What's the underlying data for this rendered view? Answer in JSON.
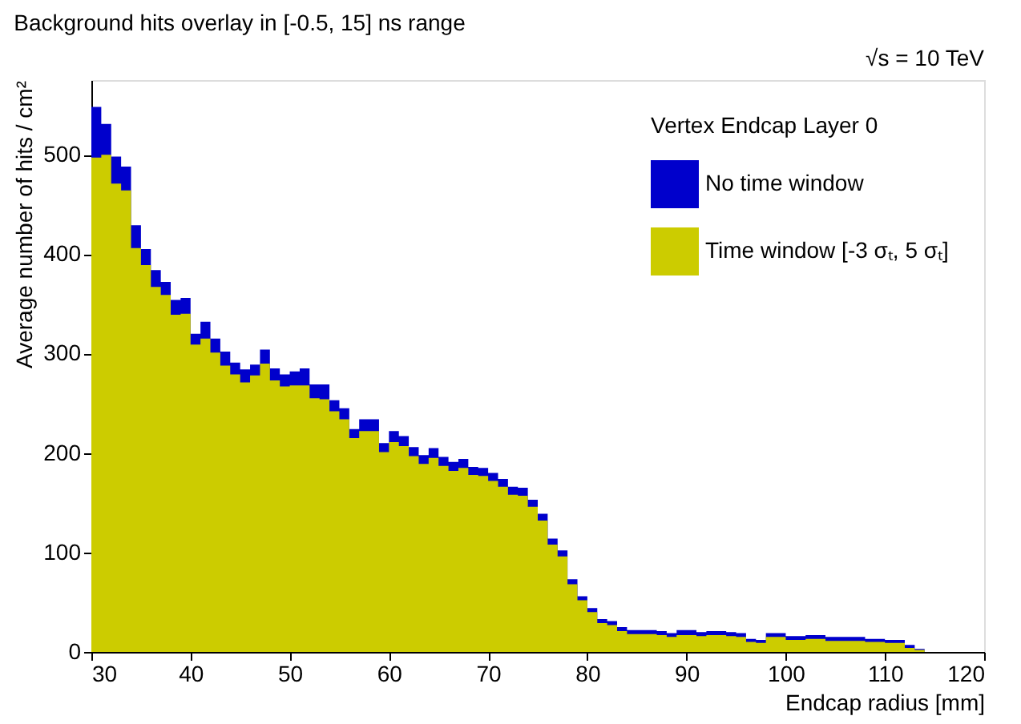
{
  "chart_data": {
    "type": "histogram",
    "title": "Background hits overlay in [-0.5, 15] ns range",
    "annotations": [
      "√s = 10 TeV"
    ],
    "xlabel": "Endcap radius [mm]",
    "ylabel": "Average number of hits / cm²",
    "legend_title": "Vertex Endcap Layer 0",
    "legend": "top right",
    "grid": false,
    "bins": [
      30,
      31,
      32,
      33,
      34,
      35,
      36,
      37,
      38,
      39,
      40,
      41,
      42,
      43,
      44,
      45,
      46,
      47,
      48,
      49,
      50,
      51,
      52,
      53,
      54,
      55,
      56,
      57,
      58,
      59,
      60,
      61,
      62,
      63,
      64,
      65,
      66,
      67,
      68,
      69,
      70,
      71,
      72,
      73,
      74,
      75,
      76,
      77,
      78,
      79,
      80,
      81,
      82,
      83,
      84,
      85,
      86,
      87,
      88,
      89,
      90,
      91,
      92,
      93,
      94,
      95,
      96,
      97,
      98,
      99,
      100,
      101,
      102,
      103,
      104,
      105,
      106,
      107,
      108,
      109,
      110,
      111,
      112,
      113,
      114
    ],
    "series": [
      {
        "name": "No time window",
        "color": "#0000cc",
        "values": [
          548,
          531,
          498,
          488,
          429,
          405,
          384,
          372,
          354,
          356,
          320,
          332,
          315,
          302,
          291,
          284,
          289,
          304,
          285,
          279,
          282,
          285,
          269,
          269,
          253,
          245,
          224,
          234,
          234,
          210,
          222,
          217,
          206,
          198,
          205,
          196,
          191,
          194,
          186,
          185,
          180,
          174,
          166,
          165,
          153,
          139,
          114,
          102,
          73,
          56,
          44,
          33,
          31,
          25,
          22,
          22,
          22,
          21,
          19,
          22,
          22,
          20,
          21,
          21,
          20,
          19,
          13,
          12,
          19,
          19,
          16,
          16,
          17,
          17,
          15,
          15,
          15,
          15,
          13,
          13,
          12,
          12,
          7,
          3
        ]
      },
      {
        "name": "Time window [-3 σₜ, 5 σₜ]",
        "color": "#cccc00",
        "values": [
          497,
          500,
          471,
          464,
          406,
          389,
          367,
          359,
          339,
          340,
          309,
          315,
          301,
          288,
          279,
          271,
          278,
          290,
          273,
          267,
          268,
          268,
          255,
          254,
          242,
          234,
          215,
          222,
          222,
          201,
          211,
          207,
          197,
          189,
          195,
          187,
          182,
          185,
          178,
          177,
          172,
          166,
          158,
          157,
          146,
          132,
          108,
          96,
          68,
          52,
          40,
          29,
          27,
          21,
          18,
          18,
          18,
          17,
          15,
          17,
          17,
          16,
          17,
          17,
          16,
          15,
          10,
          9,
          15,
          15,
          12,
          12,
          13,
          13,
          11,
          11,
          11,
          11,
          10,
          10,
          9,
          9,
          4,
          2
        ]
      }
    ],
    "xlim": [
      30,
      120
    ],
    "xticks": [
      30,
      40,
      50,
      60,
      70,
      80,
      90,
      100,
      110,
      120
    ],
    "ylim": [
      0,
      575
    ],
    "yticks": [
      0,
      100,
      200,
      300,
      400,
      500
    ]
  }
}
